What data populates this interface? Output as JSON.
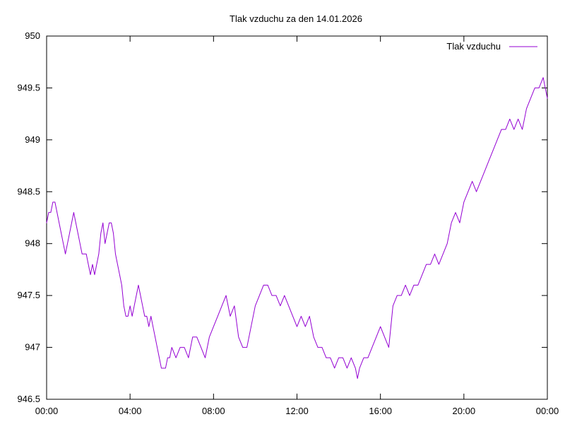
{
  "chart_data": {
    "type": "line",
    "title": "Tlak vzduchu za den 14.01.2026",
    "xlabel": "",
    "ylabel": "",
    "xlim": [
      0,
      24
    ],
    "ylim": [
      946.5,
      950
    ],
    "grid": false,
    "legend_position": "top-right",
    "x_ticks": [
      {
        "value": 0,
        "label": "00:00"
      },
      {
        "value": 4,
        "label": "04:00"
      },
      {
        "value": 8,
        "label": "08:00"
      },
      {
        "value": 12,
        "label": "12:00"
      },
      {
        "value": 16,
        "label": "16:00"
      },
      {
        "value": 20,
        "label": "20:00"
      },
      {
        "value": 24,
        "label": "00:00"
      }
    ],
    "y_ticks": [
      {
        "value": 946.5,
        "label": "946.5"
      },
      {
        "value": 947,
        "label": "947"
      },
      {
        "value": 947.5,
        "label": "947.5"
      },
      {
        "value": 948,
        "label": "948"
      },
      {
        "value": 948.5,
        "label": "948.5"
      },
      {
        "value": 949,
        "label": "949"
      },
      {
        "value": 949.5,
        "label": "949.5"
      },
      {
        "value": 950,
        "label": "950"
      }
    ],
    "series": [
      {
        "name": "Tlak vzduchu",
        "color": "#9400d3",
        "x": [
          0.0,
          0.1,
          0.2,
          0.3,
          0.4,
          0.5,
          0.6,
          0.7,
          0.8,
          0.9,
          1.0,
          1.1,
          1.2,
          1.3,
          1.4,
          1.5,
          1.6,
          1.7,
          1.8,
          1.9,
          2.0,
          2.1,
          2.2,
          2.3,
          2.4,
          2.5,
          2.6,
          2.7,
          2.8,
          2.9,
          3.0,
          3.1,
          3.2,
          3.3,
          3.4,
          3.5,
          3.6,
          3.7,
          3.8,
          3.9,
          4.0,
          4.1,
          4.2,
          4.3,
          4.4,
          4.5,
          4.6,
          4.7,
          4.8,
          4.9,
          5.0,
          5.1,
          5.2,
          5.3,
          5.4,
          5.5,
          5.6,
          5.7,
          5.8,
          5.9,
          6.0,
          6.2,
          6.4,
          6.6,
          6.8,
          7.0,
          7.2,
          7.4,
          7.6,
          7.8,
          8.0,
          8.2,
          8.4,
          8.6,
          8.8,
          9.0,
          9.2,
          9.4,
          9.6,
          9.8,
          10.0,
          10.2,
          10.4,
          10.6,
          10.8,
          11.0,
          11.2,
          11.4,
          11.6,
          11.8,
          12.0,
          12.2,
          12.4,
          12.6,
          12.8,
          13.0,
          13.2,
          13.4,
          13.6,
          13.8,
          14.0,
          14.2,
          14.4,
          14.6,
          14.8,
          14.9,
          15.0,
          15.2,
          15.4,
          15.6,
          15.8,
          16.0,
          16.2,
          16.4,
          16.6,
          16.8,
          17.0,
          17.2,
          17.4,
          17.6,
          17.8,
          18.0,
          18.2,
          18.4,
          18.6,
          18.8,
          19.0,
          19.2,
          19.4,
          19.6,
          19.8,
          20.0,
          20.2,
          20.4,
          20.6,
          20.8,
          21.0,
          21.2,
          21.4,
          21.6,
          21.8,
          22.0,
          22.2,
          22.4,
          22.6,
          22.8,
          23.0,
          23.2,
          23.4,
          23.6,
          23.8,
          23.9,
          24.0
        ],
        "y": [
          948.2,
          948.3,
          948.3,
          948.4,
          948.4,
          948.3,
          948.2,
          948.1,
          948.0,
          947.9,
          948.0,
          948.1,
          948.2,
          948.3,
          948.2,
          948.1,
          948.0,
          947.9,
          947.9,
          947.9,
          947.8,
          947.7,
          947.8,
          947.7,
          947.8,
          947.9,
          948.1,
          948.2,
          948.0,
          948.1,
          948.2,
          948.2,
          948.1,
          947.9,
          947.8,
          947.7,
          947.6,
          947.4,
          947.3,
          947.3,
          947.4,
          947.3,
          947.4,
          947.5,
          947.6,
          947.5,
          947.4,
          947.3,
          947.3,
          947.2,
          947.3,
          947.2,
          947.1,
          947.0,
          946.9,
          946.8,
          946.8,
          946.8,
          946.9,
          946.9,
          947.0,
          946.9,
          947.0,
          947.0,
          946.9,
          947.1,
          947.1,
          947.0,
          946.9,
          947.1,
          947.2,
          947.3,
          947.4,
          947.5,
          947.3,
          947.4,
          947.1,
          947.0,
          947.0,
          947.2,
          947.4,
          947.5,
          947.6,
          947.6,
          947.5,
          947.5,
          947.4,
          947.5,
          947.4,
          947.3,
          947.2,
          947.3,
          947.2,
          947.3,
          947.1,
          947.0,
          947.0,
          946.9,
          946.9,
          946.8,
          946.9,
          946.9,
          946.8,
          946.9,
          946.8,
          946.7,
          946.8,
          946.9,
          946.9,
          947.0,
          947.1,
          947.2,
          947.1,
          947.0,
          947.4,
          947.5,
          947.5,
          947.6,
          947.5,
          947.6,
          947.6,
          947.7,
          947.8,
          947.8,
          947.9,
          947.8,
          947.9,
          948.0,
          948.2,
          948.3,
          948.2,
          948.4,
          948.5,
          948.6,
          948.5,
          948.6,
          948.7,
          948.8,
          948.9,
          949.0,
          949.1,
          949.1,
          949.2,
          949.1,
          949.2,
          949.1,
          949.3,
          949.4,
          949.5,
          949.5,
          949.6,
          949.5,
          949.4
        ]
      }
    ]
  }
}
